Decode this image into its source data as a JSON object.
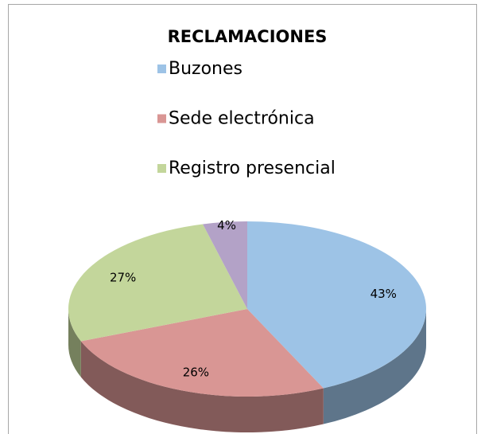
{
  "chart_data": {
    "type": "pie3d",
    "title": "RECLAMACIONES",
    "categories": [
      "Buzones",
      "Sede electrónica",
      "Registro presencial",
      null
    ],
    "values": [
      43,
      26,
      27,
      4
    ],
    "value_labels": [
      "43%",
      "26%",
      "27%",
      "4%"
    ],
    "colors": [
      "#9dc3e6",
      "#d99694",
      "#c3d69b",
      "#b3a2c7"
    ],
    "legend": "top"
  }
}
